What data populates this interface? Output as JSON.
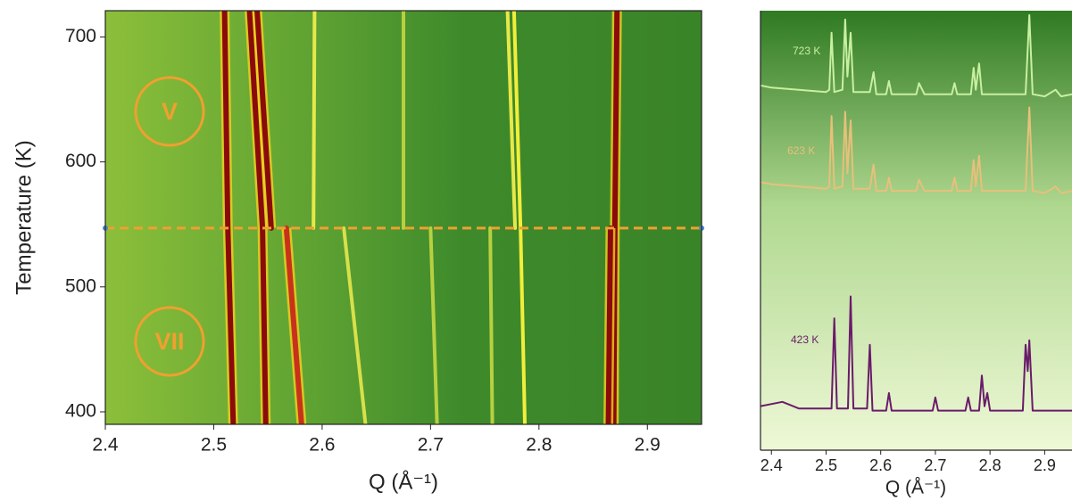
{
  "chart_data": [
    {
      "type": "heatmap",
      "x_label": "Q (Å⁻¹)",
      "y_label": "Temperature (K)",
      "xlim": [
        2.4,
        2.95
      ],
      "xticks": [
        2.4,
        2.5,
        2.6,
        2.7,
        2.8,
        2.9
      ],
      "ylim": [
        390,
        721
      ],
      "yticks": [
        400,
        500,
        600,
        700
      ],
      "background": "#3e8a2b",
      "transition_temperature": 547,
      "transition_color": "#f0a030",
      "annotations": [
        {
          "text": "V"
        },
        {
          "text": "VII"
        }
      ],
      "heatmap": {
        "temperatures": [
          390,
          547,
          721
        ],
        "streaks": [
          {
            "color": "#8b0a0a",
            "q": [
              2.518,
              2.513,
              2.51
            ]
          },
          {
            "color": "#8b0a0a",
            "q": [
              2.548,
              2.545,
              2.533
            ]
          },
          {
            "color": "#8b0a0a",
            "q": [
              null,
              2.553,
              2.54
            ]
          },
          {
            "color": "#c8321a",
            "q": [
              2.581,
              2.567,
              null
            ]
          },
          {
            "color": "#8b0a0a",
            "q": [
              2.869,
              2.87,
              2.872
            ]
          },
          {
            "color": "#8b0a0a",
            "q": [
              2.864,
              2.866,
              null
            ]
          },
          {
            "color": "#f2ee3a",
            "q": [
              2.787,
              2.783,
              2.777
            ]
          },
          {
            "color": "#e8e84a",
            "q": [
              null,
              2.778,
              2.771
            ]
          },
          {
            "color": "#e8e84a",
            "q": [
              null,
              2.592,
              2.593
            ]
          },
          {
            "color": "#d8e04a",
            "q": [
              2.64,
              2.62,
              null
            ]
          },
          {
            "color": "#b8d040",
            "q": [
              null,
              2.675,
              2.675
            ]
          },
          {
            "color": "#b8d040",
            "q": [
              2.757,
              2.755,
              null
            ]
          },
          {
            "color": "#b8d040",
            "q": [
              2.706,
              2.7,
              null
            ]
          }
        ]
      }
    },
    {
      "type": "line",
      "x_label": "Q (Å⁻¹)",
      "xlim": [
        2.38,
        2.95
      ],
      "xticks": [
        2.4,
        2.5,
        2.6,
        2.7,
        2.8,
        2.9
      ],
      "ylim": [
        0,
        100
      ],
      "series": [
        {
          "name": "723 K",
          "color": "#c8f0a0",
          "x": [
            2.38,
            2.4,
            2.45,
            2.5,
            2.506,
            2.51,
            2.515,
            2.53,
            2.535,
            2.539,
            2.545,
            2.55,
            2.58,
            2.587,
            2.592,
            2.61,
            2.615,
            2.62,
            2.665,
            2.67,
            2.68,
            2.73,
            2.735,
            2.74,
            2.765,
            2.77,
            2.774,
            2.78,
            2.785,
            2.865,
            2.872,
            2.878,
            2.9,
            2.92,
            2.93,
            2.95
          ],
          "values": [
            83,
            82.5,
            82,
            81.5,
            82,
            95,
            81.5,
            82,
            98,
            85,
            95,
            81.5,
            81.5,
            86,
            81,
            81,
            84,
            81,
            81,
            83.5,
            81,
            81,
            83.5,
            81,
            81,
            87,
            82,
            88,
            81,
            81,
            99,
            81,
            80.5,
            82,
            80.5,
            81
          ]
        },
        {
          "name": "623 K",
          "color": "#e8c07a",
          "x": [
            2.38,
            2.4,
            2.45,
            2.5,
            2.506,
            2.51,
            2.515,
            2.53,
            2.535,
            2.539,
            2.545,
            2.55,
            2.58,
            2.587,
            2.592,
            2.61,
            2.615,
            2.62,
            2.665,
            2.67,
            2.68,
            2.73,
            2.735,
            2.74,
            2.765,
            2.77,
            2.774,
            2.78,
            2.785,
            2.865,
            2.872,
            2.878,
            2.9,
            2.92,
            2.93,
            2.95
          ],
          "values": [
            61,
            60.5,
            60,
            59.5,
            60,
            76,
            59.5,
            60,
            77,
            63,
            75,
            59.5,
            59.5,
            65,
            59,
            59,
            62,
            59,
            59,
            61.5,
            59,
            59,
            62,
            59,
            59,
            66,
            60,
            67,
            59,
            59,
            78,
            59,
            58.5,
            60,
            58.5,
            59
          ]
        },
        {
          "name": "423 K",
          "color": "#6a1b6a",
          "x": [
            2.38,
            2.42,
            2.45,
            2.51,
            2.515,
            2.52,
            2.54,
            2.545,
            2.55,
            2.575,
            2.58,
            2.585,
            2.61,
            2.615,
            2.62,
            2.695,
            2.7,
            2.705,
            2.755,
            2.76,
            2.765,
            2.78,
            2.785,
            2.79,
            2.795,
            2.8,
            2.86,
            2.865,
            2.869,
            2.872,
            2.878,
            2.9,
            2.95
          ],
          "values": [
            10,
            11,
            9.5,
            9.5,
            30,
            9.5,
            9.5,
            35,
            9.5,
            9.5,
            24,
            9,
            9,
            13,
            9,
            9,
            12,
            9,
            9,
            12,
            9,
            9,
            17,
            10,
            13,
            9,
            9,
            24,
            18,
            25,
            9,
            9,
            9
          ]
        }
      ]
    }
  ]
}
